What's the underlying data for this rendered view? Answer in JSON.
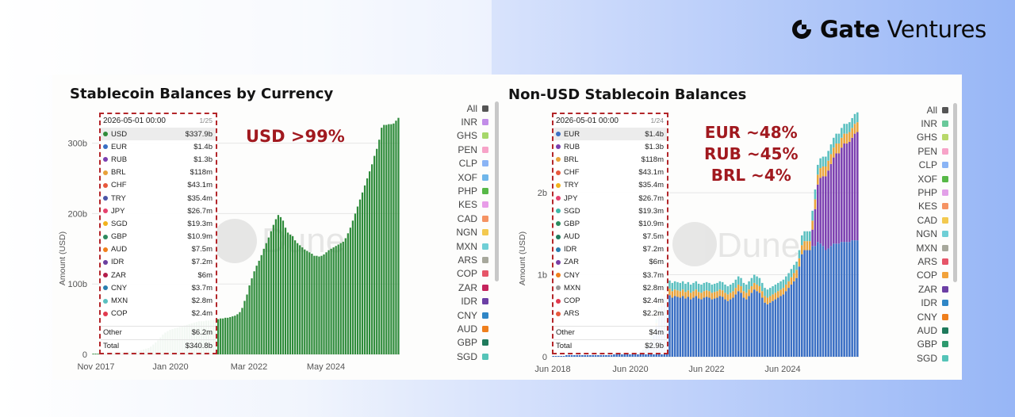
{
  "brand": {
    "name_bold": "Gate",
    "name_rest": " Ventures"
  },
  "colors": {
    "annotation": "#a1191f",
    "tooltip_border": "#b3262a",
    "usd_bar": "#2e8b3a"
  },
  "chart_data": [
    {
      "type": "bar",
      "title": "Stablecoin Balances by Currency",
      "xlabel": "",
      "ylabel": "Amount (USD)",
      "x_tick_labels": [
        "Nov 2017",
        "Jan 2020",
        "Mar 2022",
        "May 2024"
      ],
      "y_tick_labels": [
        "0",
        "100b",
        "200b",
        "300b"
      ],
      "ylim": [
        0,
        330
      ],
      "watermark": "Dune",
      "annotation": "USD >99%",
      "series": [
        {
          "name": "USD",
          "color": "#2e8b3a",
          "values": [
            1,
            1,
            1,
            1,
            2,
            2,
            2,
            2,
            2,
            3,
            3,
            3,
            3,
            3,
            4,
            4,
            4,
            4,
            5,
            5,
            6,
            7,
            8,
            9,
            11,
            14,
            17,
            20,
            24,
            28,
            31,
            33,
            35,
            36,
            37,
            38,
            39,
            40,
            41,
            42,
            43,
            44,
            45,
            46,
            47,
            47,
            47,
            48,
            48,
            49,
            49,
            50,
            50,
            51,
            51,
            52,
            52,
            53,
            54,
            55,
            57,
            60,
            66,
            76,
            85,
            98,
            108,
            118,
            126,
            133,
            141,
            150,
            158,
            166,
            175,
            184,
            192,
            198,
            195,
            190,
            180,
            173,
            170,
            168,
            162,
            158,
            155,
            152,
            149,
            147,
            145,
            143,
            140,
            140,
            139,
            140,
            142,
            145,
            148,
            150,
            152,
            154,
            156,
            158,
            160,
            165,
            172,
            180,
            190,
            200,
            210,
            220,
            230,
            240,
            250,
            260,
            270,
            282,
            292,
            305,
            322,
            326,
            326,
            327,
            327,
            328,
            332,
            336
          ]
        }
      ],
      "tooltip": {
        "date": "2026-05-01 00:00",
        "page": "1/25",
        "rows": [
          {
            "label": "USD",
            "value": "$337.9b",
            "color": "#2e8b3a"
          },
          {
            "label": "EUR",
            "value": "$1.4b",
            "color": "#3a6fc4"
          },
          {
            "label": "RUB",
            "value": "$1.3b",
            "color": "#7b3fb0"
          },
          {
            "label": "BRL",
            "value": "$118m",
            "color": "#e8a23a"
          },
          {
            "label": "CHF",
            "value": "$43.1m",
            "color": "#e8583c"
          },
          {
            "label": "TRY",
            "value": "$35.4m",
            "color": "#4a55a6"
          },
          {
            "label": "JPY",
            "value": "$26.7m",
            "color": "#e5416e"
          },
          {
            "label": "SGD",
            "value": "$19.3m",
            "color": "#f2b31c"
          },
          {
            "label": "GBP",
            "value": "$10.9m",
            "color": "#2d8a5e"
          },
          {
            "label": "AUD",
            "value": "$7.5m",
            "color": "#f07e1a"
          },
          {
            "label": "IDR",
            "value": "$7.2m",
            "color": "#6b3fa0"
          },
          {
            "label": "ZAR",
            "value": "$6m",
            "color": "#b31d4a"
          },
          {
            "label": "CNY",
            "value": "$3.7m",
            "color": "#2a7fb0"
          },
          {
            "label": "MXN",
            "value": "$2.8m",
            "color": "#5bc0c0"
          },
          {
            "label": "COP",
            "value": "$2.4m",
            "color": "#e23a4e"
          }
        ],
        "other": {
          "label": "Other",
          "value": "$6.2m"
        },
        "total": {
          "label": "Total",
          "value": "$340.8b"
        }
      },
      "legend": [
        {
          "label": "All",
          "color": "#555555"
        },
        {
          "label": "INR",
          "color": "#c28de8"
        },
        {
          "label": "GHS",
          "color": "#a6d86a"
        },
        {
          "label": "PEN",
          "color": "#f7a3c8"
        },
        {
          "label": "CLP",
          "color": "#8ab4f5"
        },
        {
          "label": "XOF",
          "color": "#6fb6ea"
        },
        {
          "label": "PHP",
          "color": "#57b847"
        },
        {
          "label": "KES",
          "color": "#e89de8"
        },
        {
          "label": "CAD",
          "color": "#f59363"
        },
        {
          "label": "NGN",
          "color": "#f3c94f"
        },
        {
          "label": "MXN",
          "color": "#6fcfd6"
        },
        {
          "label": "ARS",
          "color": "#a7a89c"
        },
        {
          "label": "COP",
          "color": "#e65568"
        },
        {
          "label": "ZAR",
          "color": "#c4235c"
        },
        {
          "label": "IDR",
          "color": "#6c3fa5"
        },
        {
          "label": "CNY",
          "color": "#2f86c6"
        },
        {
          "label": "AUD",
          "color": "#ef7f1d"
        },
        {
          "label": "GBP",
          "color": "#1f7a5c"
        },
        {
          "label": "SGD",
          "color": "#55c4b8"
        }
      ]
    },
    {
      "type": "bar",
      "title": "Non-USD Stablecoin Balances",
      "xlabel": "",
      "ylabel": "Amount (USD)",
      "x_tick_labels": [
        "Jun 2018",
        "Jun 2020",
        "Jun 2022",
        "Jun 2024"
      ],
      "y_tick_labels": [
        "0",
        "1b",
        "2b"
      ],
      "ylim": [
        0,
        2.9
      ],
      "watermark": "Dune",
      "annotation": [
        "EUR ~48%",
        "RUB ~45%",
        "BRL ~4%"
      ],
      "series": [
        {
          "name": "EUR",
          "color": "#3a6fc4",
          "values": [
            0.01,
            0.01,
            0.01,
            0.01,
            0.01,
            0.02,
            0.02,
            0.02,
            0.02,
            0.02,
            0.02,
            0.02,
            0.02,
            0.02,
            0.02,
            0.02,
            0.02,
            0.02,
            0.02,
            0.02,
            0.02,
            0.02,
            0.02,
            0.03,
            0.03,
            0.03,
            0.03,
            0.03,
            0.03,
            0.03,
            0.04,
            0.04,
            0.05,
            0.06,
            0.08,
            0.1,
            0.14,
            0.2,
            0.28,
            0.38,
            0.5,
            0.62,
            0.72,
            0.76,
            0.75,
            0.72,
            0.74,
            0.73,
            0.72,
            0.74,
            0.71,
            0.73,
            0.7,
            0.72,
            0.74,
            0.71,
            0.7,
            0.72,
            0.73,
            0.72,
            0.7,
            0.71,
            0.72,
            0.74,
            0.73,
            0.7,
            0.68,
            0.7,
            0.72,
            0.76,
            0.8,
            0.78,
            0.72,
            0.7,
            0.74,
            0.78,
            0.82,
            0.8,
            0.78,
            0.72,
            0.66,
            0.64,
            0.66,
            0.68,
            0.7,
            0.72,
            0.74,
            0.76,
            0.8,
            0.84,
            0.88,
            0.92,
            0.96,
            1.1,
            1.25,
            1.3,
            1.3,
            1.3,
            1.35,
            1.35,
            1.4,
            1.38,
            1.35,
            1.3,
            1.32,
            1.35,
            1.38,
            1.38,
            1.38,
            1.4,
            1.4,
            1.4,
            1.4,
            1.42,
            1.42,
            1.42
          ]
        },
        {
          "name": "RUB",
          "color": "#7b3fb0",
          "values": [
            0,
            0,
            0,
            0,
            0,
            0,
            0,
            0,
            0,
            0,
            0,
            0,
            0,
            0,
            0,
            0,
            0,
            0,
            0,
            0,
            0,
            0,
            0,
            0,
            0,
            0,
            0,
            0,
            0,
            0,
            0,
            0,
            0,
            0,
            0,
            0,
            0,
            0,
            0,
            0,
            0,
            0,
            0,
            0,
            0,
            0,
            0,
            0,
            0,
            0,
            0,
            0,
            0,
            0,
            0,
            0,
            0,
            0,
            0,
            0,
            0,
            0,
            0,
            0,
            0,
            0,
            0,
            0,
            0,
            0,
            0,
            0,
            0,
            0,
            0,
            0,
            0,
            0,
            0,
            0,
            0,
            0,
            0,
            0,
            0,
            0,
            0,
            0,
            0,
            0,
            0,
            0,
            0,
            0,
            0,
            0,
            0,
            0,
            0.2,
            0.45,
            0.7,
            0.8,
            0.85,
            0.9,
            0.95,
            1.0,
            1.05,
            1.1,
            1.1,
            1.15,
            1.2,
            1.2,
            1.22,
            1.25,
            1.3,
            1.32
          ]
        },
        {
          "name": "BRL",
          "color": "#e8a23a",
          "values": [
            0,
            0,
            0,
            0,
            0,
            0,
            0,
            0,
            0,
            0,
            0,
            0,
            0,
            0,
            0,
            0,
            0,
            0,
            0,
            0,
            0,
            0,
            0,
            0,
            0,
            0,
            0,
            0,
            0,
            0,
            0,
            0,
            0,
            0,
            0,
            0.01,
            0.01,
            0.02,
            0.02,
            0.03,
            0.05,
            0.06,
            0.07,
            0.08,
            0.08,
            0.08,
            0.08,
            0.08,
            0.08,
            0.08,
            0.08,
            0.08,
            0.08,
            0.08,
            0.08,
            0.08,
            0.08,
            0.08,
            0.08,
            0.08,
            0.08,
            0.08,
            0.08,
            0.08,
            0.08,
            0.08,
            0.08,
            0.08,
            0.08,
            0.08,
            0.08,
            0.08,
            0.08,
            0.08,
            0.08,
            0.08,
            0.08,
            0.08,
            0.08,
            0.08,
            0.08,
            0.08,
            0.08,
            0.08,
            0.08,
            0.08,
            0.08,
            0.08,
            0.08,
            0.08,
            0.09,
            0.1,
            0.1,
            0.1,
            0.11,
            0.11,
            0.11,
            0.11,
            0.11,
            0.12,
            0.12,
            0.12,
            0.12,
            0.12,
            0.12,
            0.12,
            0.12,
            0.12,
            0.12,
            0.12,
            0.12,
            0.12,
            0.12,
            0.12,
            0.12,
            0.12
          ]
        },
        {
          "name": "Other",
          "color": "#5bc0c0",
          "values": [
            0,
            0,
            0,
            0,
            0,
            0,
            0,
            0,
            0,
            0,
            0,
            0,
            0,
            0,
            0,
            0,
            0,
            0,
            0,
            0,
            0,
            0,
            0,
            0,
            0,
            0,
            0,
            0,
            0,
            0,
            0,
            0,
            0,
            0,
            0.01,
            0.01,
            0.02,
            0.03,
            0.04,
            0.05,
            0.06,
            0.08,
            0.1,
            0.1,
            0.1,
            0.1,
            0.1,
            0.1,
            0.1,
            0.1,
            0.1,
            0.1,
            0.1,
            0.1,
            0.1,
            0.1,
            0.1,
            0.1,
            0.1,
            0.1,
            0.1,
            0.1,
            0.1,
            0.1,
            0.1,
            0.1,
            0.1,
            0.1,
            0.1,
            0.1,
            0.1,
            0.1,
            0.1,
            0.1,
            0.1,
            0.1,
            0.1,
            0.1,
            0.1,
            0.1,
            0.1,
            0.1,
            0.1,
            0.1,
            0.1,
            0.1,
            0.1,
            0.1,
            0.1,
            0.1,
            0.1,
            0.1,
            0.1,
            0.1,
            0.12,
            0.12,
            0.12,
            0.12,
            0.12,
            0.12,
            0.12,
            0.12,
            0.12,
            0.12,
            0.12,
            0.12,
            0.12,
            0.12,
            0.12,
            0.12,
            0.12,
            0.12,
            0.12,
            0.12,
            0.12,
            0.12
          ]
        }
      ],
      "tooltip": {
        "date": "2026-05-01 00:00",
        "page": "1/24",
        "rows": [
          {
            "label": "EUR",
            "value": "$1.4b",
            "color": "#3a6fc4"
          },
          {
            "label": "RUB",
            "value": "$1.3b",
            "color": "#7b3fb0"
          },
          {
            "label": "BRL",
            "value": "$118m",
            "color": "#e8a23a"
          },
          {
            "label": "CHF",
            "value": "$43.1m",
            "color": "#e8583c"
          },
          {
            "label": "TRY",
            "value": "$35.4m",
            "color": "#f2b31c"
          },
          {
            "label": "JPY",
            "value": "$26.7m",
            "color": "#e5416e"
          },
          {
            "label": "SGD",
            "value": "$19.3m",
            "color": "#3fb7a8"
          },
          {
            "label": "GBP",
            "value": "$10.9m",
            "color": "#2d8a5e"
          },
          {
            "label": "AUD",
            "value": "$7.5m",
            "color": "#1f7a5c"
          },
          {
            "label": "IDR",
            "value": "$7.2m",
            "color": "#2a7fb0"
          },
          {
            "label": "ZAR",
            "value": "$6m",
            "color": "#7a3fa5"
          },
          {
            "label": "CNY",
            "value": "$3.7m",
            "color": "#f07e1a"
          },
          {
            "label": "MXN",
            "value": "$2.8m",
            "color": "#9a9a9a"
          },
          {
            "label": "COP",
            "value": "$2.4m",
            "color": "#e23a4e"
          },
          {
            "label": "ARS",
            "value": "$2.2m",
            "color": "#e8583c"
          }
        ],
        "other": {
          "label": "Other",
          "value": "$4m"
        },
        "total": {
          "label": "Total",
          "value": "$2.9b"
        }
      },
      "legend": [
        {
          "label": "All",
          "color": "#555555"
        },
        {
          "label": "INR",
          "color": "#69c99a"
        },
        {
          "label": "GHS",
          "color": "#b8d86a"
        },
        {
          "label": "PEN",
          "color": "#f7a3c8"
        },
        {
          "label": "CLP",
          "color": "#8ab4f5"
        },
        {
          "label": "XOF",
          "color": "#57b847"
        },
        {
          "label": "PHP",
          "color": "#e2a0e8"
        },
        {
          "label": "KES",
          "color": "#f59363"
        },
        {
          "label": "CAD",
          "color": "#f3c94f"
        },
        {
          "label": "NGN",
          "color": "#6fcfd6"
        },
        {
          "label": "MXN",
          "color": "#a7a89c"
        },
        {
          "label": "ARS",
          "color": "#e65568"
        },
        {
          "label": "COP",
          "color": "#f2a23a"
        },
        {
          "label": "ZAR",
          "color": "#6c3fa5"
        },
        {
          "label": "IDR",
          "color": "#2f86c6"
        },
        {
          "label": "CNY",
          "color": "#ef7f1d"
        },
        {
          "label": "AUD",
          "color": "#1f7a5c"
        },
        {
          "label": "GBP",
          "color": "#2d9a6e"
        },
        {
          "label": "SGD",
          "color": "#55c4b8"
        }
      ]
    }
  ]
}
